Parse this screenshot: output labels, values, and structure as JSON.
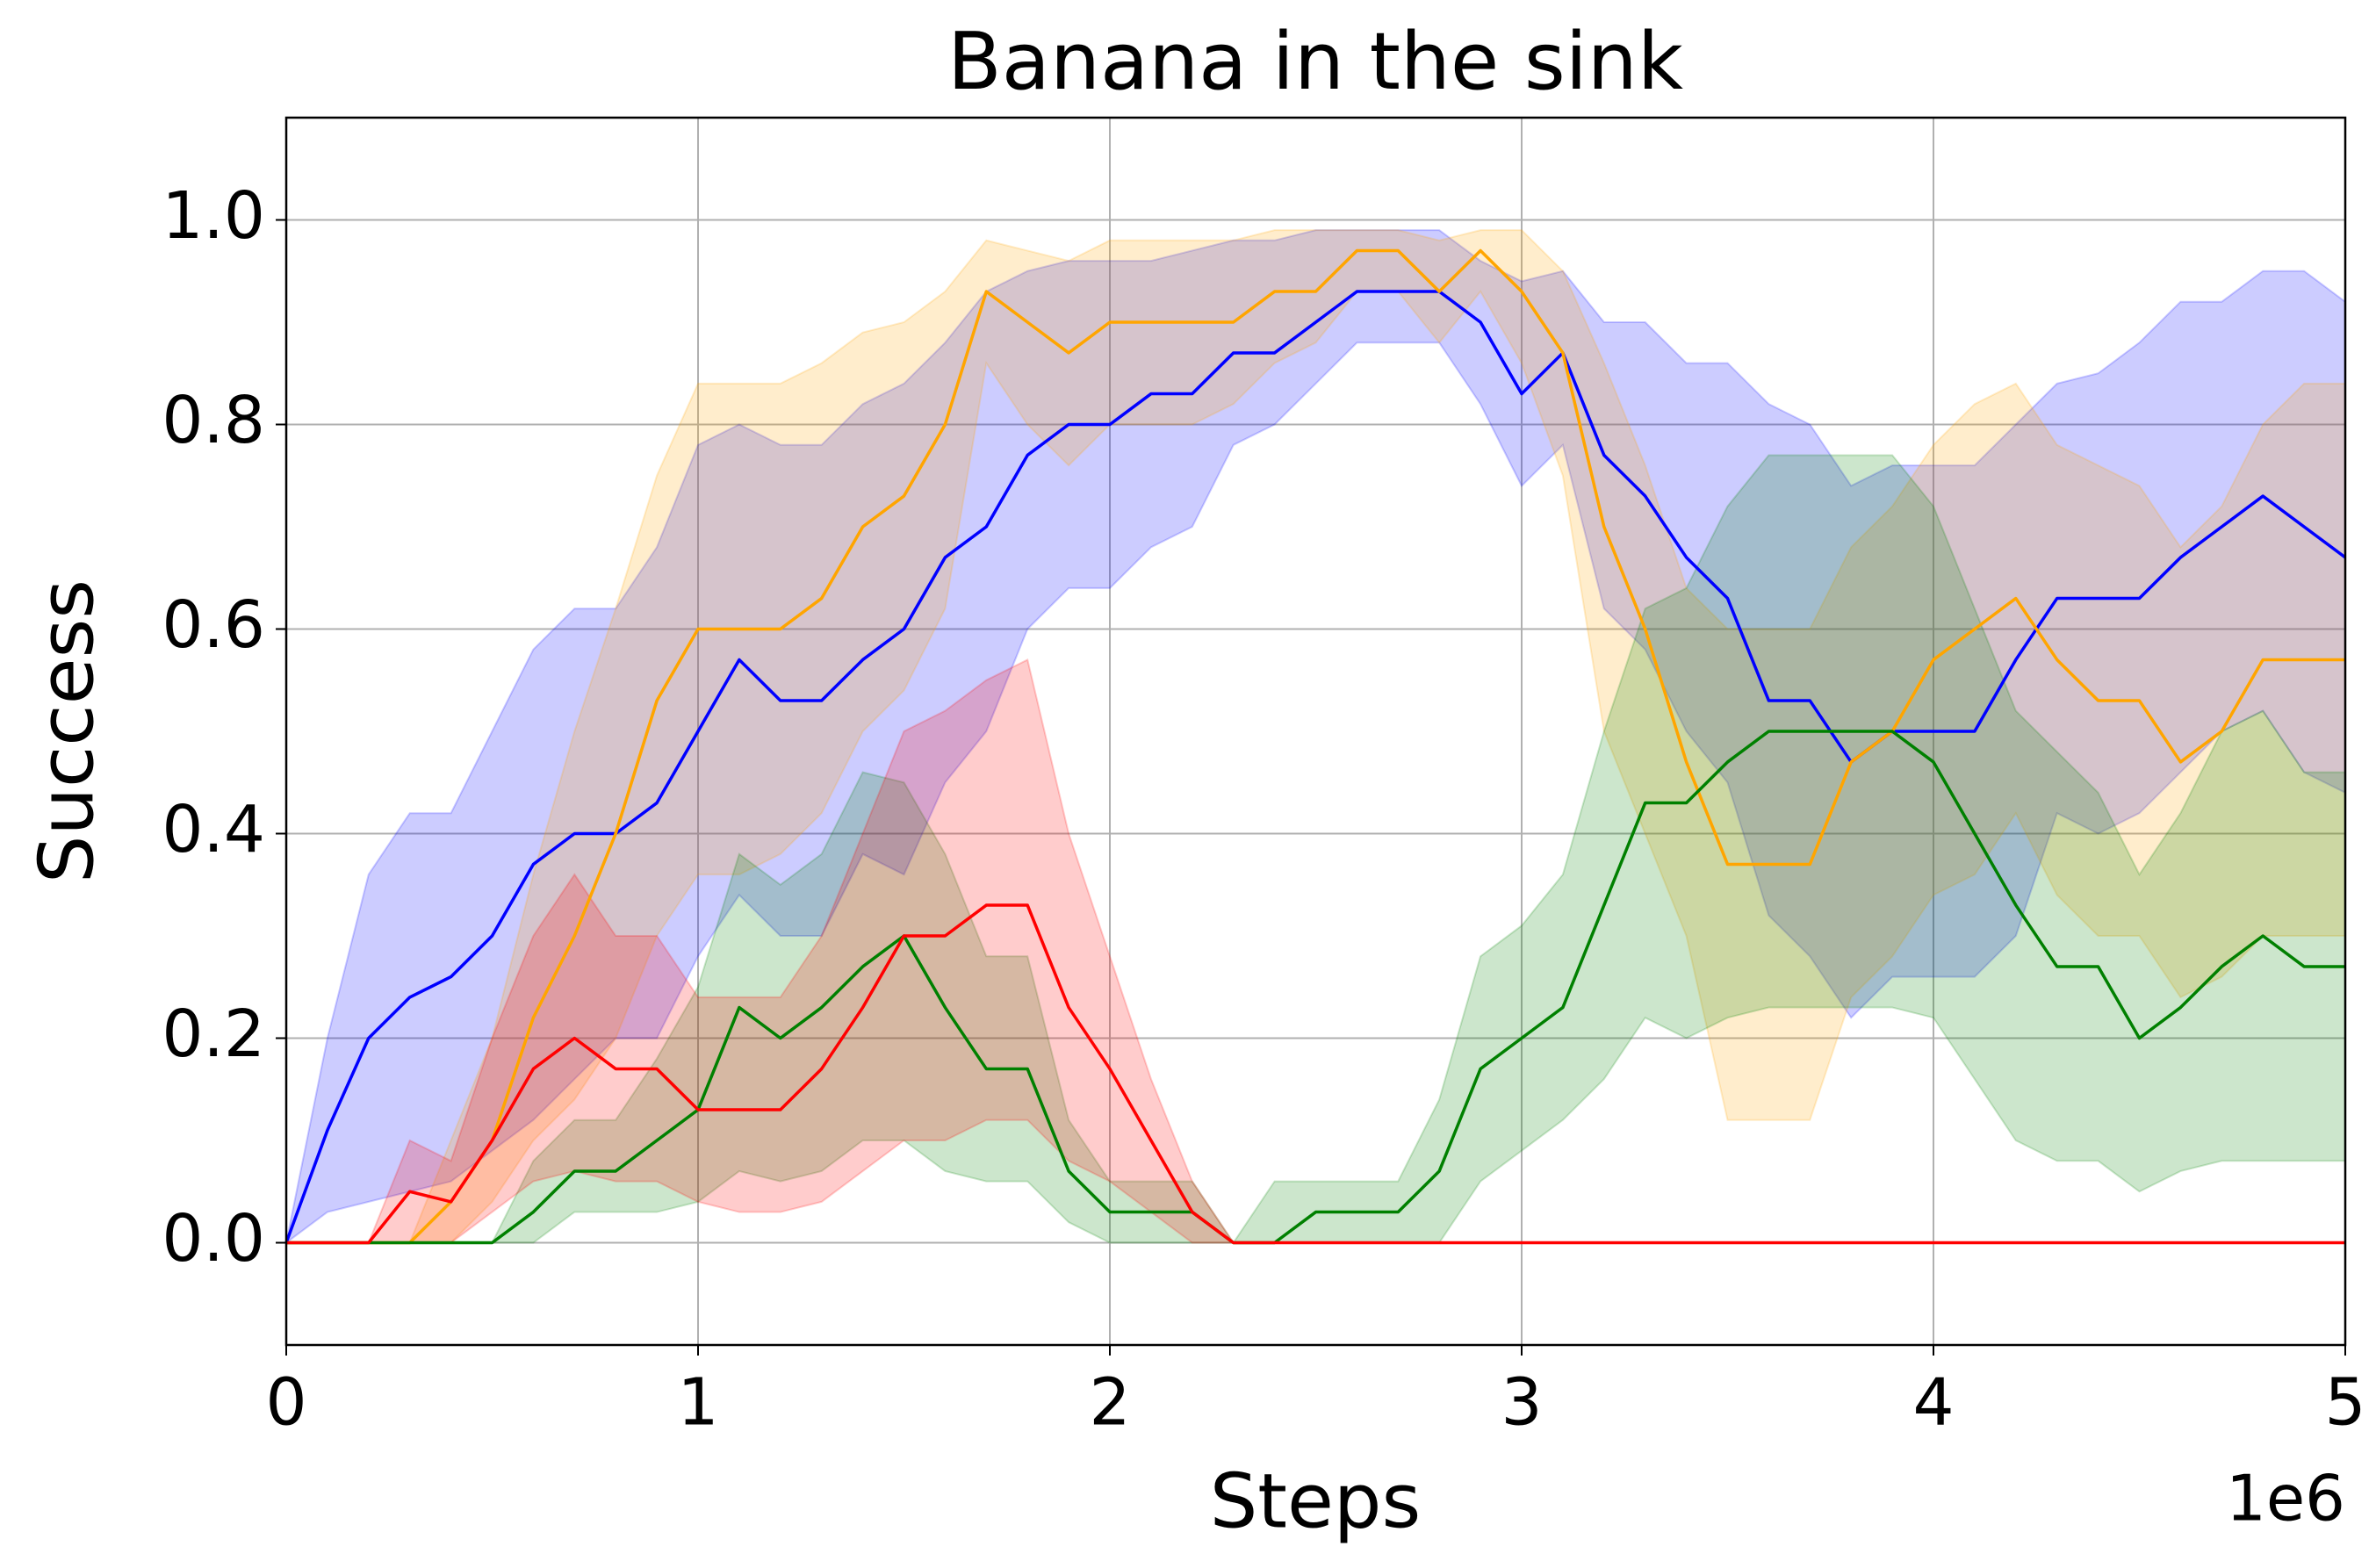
{
  "chart_data": {
    "type": "line",
    "title": "Banana in the sink",
    "x_label": "Steps",
    "y_label": "Success",
    "x_offset_label": "1e6",
    "x": [
      0,
      0.1,
      0.2,
      0.3,
      0.4,
      0.5,
      0.6,
      0.7,
      0.8,
      0.9,
      1,
      1.1,
      1.2,
      1.3,
      1.4,
      1.5,
      1.6,
      1.7,
      1.8,
      1.9,
      2,
      2.1,
      2.2,
      2.3,
      2.4,
      2.5,
      2.6,
      2.7,
      2.8,
      2.9,
      3,
      3.1,
      3.2,
      3.3,
      3.4,
      3.5,
      3.6,
      3.7,
      3.8,
      3.9,
      4,
      4.1,
      4.2,
      4.3,
      4.4,
      4.5,
      4.6,
      4.7,
      4.8,
      4.9,
      5
    ],
    "band_opacity": 0.2,
    "series": [
      {
        "color": "#0000ff",
        "values": [
          0,
          0.11,
          0.2,
          0.24,
          0.26,
          0.3,
          0.37,
          0.4,
          0.4,
          0.43,
          0.5,
          0.57,
          0.53,
          0.53,
          0.57,
          0.6,
          0.67,
          0.7,
          0.77,
          0.8,
          0.8,
          0.83,
          0.83,
          0.87,
          0.87,
          0.9,
          0.93,
          0.93,
          0.93,
          0.9,
          0.83,
          0.87,
          0.77,
          0.73,
          0.67,
          0.63,
          0.53,
          0.53,
          0.47,
          0.5,
          0.5,
          0.5,
          0.57,
          0.63,
          0.63,
          0.63,
          0.67,
          0.7,
          0.73,
          0.7,
          0.67
        ],
        "lower": [
          0,
          0.03,
          0.04,
          0.05,
          0.06,
          0.09,
          0.12,
          0.16,
          0.2,
          0.2,
          0.28,
          0.34,
          0.3,
          0.3,
          0.38,
          0.36,
          0.45,
          0.5,
          0.6,
          0.64,
          0.64,
          0.68,
          0.7,
          0.78,
          0.8,
          0.84,
          0.88,
          0.88,
          0.88,
          0.82,
          0.74,
          0.78,
          0.62,
          0.58,
          0.5,
          0.45,
          0.32,
          0.28,
          0.22,
          0.26,
          0.26,
          0.26,
          0.3,
          0.42,
          0.4,
          0.42,
          0.46,
          0.5,
          0.52,
          0.46,
          0.44
        ],
        "upper": [
          0,
          0.2,
          0.36,
          0.42,
          0.42,
          0.5,
          0.58,
          0.62,
          0.62,
          0.68,
          0.78,
          0.8,
          0.78,
          0.78,
          0.82,
          0.84,
          0.88,
          0.93,
          0.95,
          0.96,
          0.96,
          0.96,
          0.97,
          0.98,
          0.98,
          0.99,
          0.99,
          0.99,
          0.99,
          0.96,
          0.94,
          0.95,
          0.9,
          0.9,
          0.86,
          0.86,
          0.82,
          0.8,
          0.74,
          0.76,
          0.76,
          0.76,
          0.8,
          0.84,
          0.85,
          0.88,
          0.92,
          0.92,
          0.95,
          0.95,
          0.92
        ]
      },
      {
        "color": "#ffa500",
        "values": [
          0,
          0,
          0,
          0,
          0.04,
          0.1,
          0.22,
          0.3,
          0.4,
          0.53,
          0.6,
          0.6,
          0.6,
          0.63,
          0.7,
          0.73,
          0.8,
          0.93,
          0.9,
          0.87,
          0.9,
          0.9,
          0.9,
          0.9,
          0.93,
          0.93,
          0.97,
          0.97,
          0.93,
          0.97,
          0.93,
          0.87,
          0.7,
          0.6,
          0.47,
          0.37,
          0.37,
          0.37,
          0.47,
          0.5,
          0.57,
          0.6,
          0.63,
          0.57,
          0.53,
          0.53,
          0.47,
          0.5,
          0.57,
          0.57,
          0.57
        ],
        "lower": [
          0,
          0,
          0,
          0,
          0,
          0.04,
          0.1,
          0.14,
          0.2,
          0.3,
          0.36,
          0.36,
          0.38,
          0.42,
          0.5,
          0.54,
          0.62,
          0.86,
          0.8,
          0.76,
          0.8,
          0.8,
          0.8,
          0.82,
          0.86,
          0.88,
          0.93,
          0.93,
          0.88,
          0.93,
          0.86,
          0.75,
          0.5,
          0.4,
          0.3,
          0.12,
          0.12,
          0.12,
          0.24,
          0.28,
          0.34,
          0.36,
          0.42,
          0.34,
          0.3,
          0.3,
          0.24,
          0.26,
          0.3,
          0.3,
          0.3
        ],
        "upper": [
          0,
          0,
          0,
          0,
          0.1,
          0.2,
          0.36,
          0.5,
          0.62,
          0.75,
          0.84,
          0.84,
          0.84,
          0.86,
          0.89,
          0.9,
          0.93,
          0.98,
          0.97,
          0.96,
          0.98,
          0.98,
          0.98,
          0.98,
          0.99,
          0.99,
          0.99,
          0.99,
          0.98,
          0.99,
          0.99,
          0.95,
          0.86,
          0.76,
          0.64,
          0.6,
          0.6,
          0.6,
          0.68,
          0.72,
          0.78,
          0.82,
          0.84,
          0.78,
          0.76,
          0.74,
          0.68,
          0.72,
          0.8,
          0.84,
          0.84
        ]
      },
      {
        "color": "#008000",
        "values": [
          0,
          0,
          0,
          0,
          0,
          0,
          0.03,
          0.07,
          0.07,
          0.1,
          0.13,
          0.23,
          0.2,
          0.23,
          0.27,
          0.3,
          0.23,
          0.17,
          0.17,
          0.07,
          0.03,
          0.03,
          0.03,
          0,
          0,
          0.03,
          0.03,
          0.03,
          0.07,
          0.17,
          0.2,
          0.23,
          0.33,
          0.43,
          0.43,
          0.47,
          0.5,
          0.5,
          0.5,
          0.5,
          0.47,
          0.4,
          0.33,
          0.27,
          0.27,
          0.2,
          0.23,
          0.27,
          0.3,
          0.27,
          0.27
        ],
        "lower": [
          0,
          0,
          0,
          0,
          0,
          0,
          0,
          0.03,
          0.03,
          0.03,
          0.04,
          0.07,
          0.06,
          0.07,
          0.1,
          0.1,
          0.07,
          0.06,
          0.06,
          0.02,
          0,
          0,
          0,
          0,
          0,
          0,
          0,
          0,
          0,
          0.06,
          0.09,
          0.12,
          0.16,
          0.22,
          0.2,
          0.22,
          0.23,
          0.23,
          0.23,
          0.23,
          0.22,
          0.16,
          0.1,
          0.08,
          0.08,
          0.05,
          0.07,
          0.08,
          0.08,
          0.08,
          0.08
        ],
        "upper": [
          0,
          0,
          0,
          0,
          0,
          0,
          0.08,
          0.12,
          0.12,
          0.18,
          0.25,
          0.38,
          0.35,
          0.38,
          0.46,
          0.45,
          0.38,
          0.28,
          0.28,
          0.12,
          0.06,
          0.06,
          0.06,
          0,
          0.06,
          0.06,
          0.06,
          0.06,
          0.14,
          0.28,
          0.31,
          0.36,
          0.5,
          0.62,
          0.64,
          0.72,
          0.77,
          0.77,
          0.77,
          0.77,
          0.72,
          0.62,
          0.52,
          0.48,
          0.44,
          0.36,
          0.42,
          0.5,
          0.52,
          0.46,
          0.46
        ]
      },
      {
        "color": "#ff0000",
        "values": [
          0,
          0,
          0,
          0.05,
          0.04,
          0.1,
          0.17,
          0.2,
          0.17,
          0.17,
          0.13,
          0.13,
          0.13,
          0.17,
          0.23,
          0.3,
          0.3,
          0.33,
          0.33,
          0.23,
          0.17,
          0.1,
          0.03,
          0,
          0,
          0,
          0,
          0,
          0,
          0,
          0,
          0,
          0,
          0,
          0,
          0,
          0,
          0,
          0,
          0,
          0,
          0,
          0,
          0,
          0,
          0,
          0,
          0,
          0,
          0,
          0
        ],
        "lower": [
          0,
          0,
          0,
          0,
          0,
          0.03,
          0.06,
          0.07,
          0.06,
          0.06,
          0.04,
          0.03,
          0.03,
          0.04,
          0.07,
          0.1,
          0.1,
          0.12,
          0.12,
          0.08,
          0.06,
          0.03,
          0,
          0,
          0,
          0,
          0,
          0,
          0,
          0,
          0,
          0,
          0,
          0,
          0,
          0,
          0,
          0,
          0,
          0,
          0,
          0,
          0,
          0,
          0,
          0,
          0,
          0,
          0,
          0,
          0
        ],
        "upper": [
          0,
          0,
          0,
          0.1,
          0.08,
          0.2,
          0.3,
          0.36,
          0.3,
          0.3,
          0.24,
          0.24,
          0.24,
          0.3,
          0.4,
          0.5,
          0.52,
          0.55,
          0.57,
          0.4,
          0.28,
          0.16,
          0.06,
          0,
          0,
          0,
          0,
          0,
          0,
          0,
          0,
          0,
          0,
          0,
          0,
          0,
          0,
          0,
          0,
          0,
          0,
          0,
          0,
          0,
          0,
          0,
          0,
          0,
          0,
          0,
          0
        ]
      }
    ],
    "xlim": [
      0,
      5
    ],
    "xticks": [
      0,
      1,
      2,
      3,
      4,
      5
    ],
    "ylim": [
      -0.1,
      1.1
    ],
    "yticks": [
      {
        "value": 0,
        "label": "0.0"
      },
      {
        "value": 0.2,
        "label": "0.2"
      },
      {
        "value": 0.4,
        "label": "0.4"
      },
      {
        "value": 0.6,
        "label": "0.6"
      },
      {
        "value": 0.8,
        "label": "0.8"
      },
      {
        "value": 1,
        "label": "1.0"
      }
    ],
    "grid": true
  }
}
